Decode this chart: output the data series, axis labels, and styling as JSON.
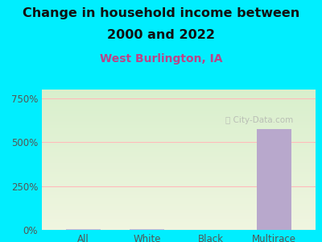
{
  "title_line1": "Change in household income between",
  "title_line2": "2000 and 2022",
  "subtitle": "West Burlington, IA",
  "categories": [
    "All",
    "White",
    "Black",
    "Multirace"
  ],
  "values": [
    3,
    6,
    2,
    575
  ],
  "bar_color_small": "#c8b8d8",
  "bar_color_large": "#b8a8cc",
  "title_fontsize": 11.5,
  "subtitle_fontsize": 10,
  "subtitle_color": "#bb4488",
  "title_color": "#111111",
  "background_color": "#00eeff",
  "plot_bg_top": "#d8efcc",
  "plot_bg_bottom": "#f0f5e0",
  "yticks": [
    0,
    250,
    500,
    750
  ],
  "ylim": [
    0,
    800
  ],
  "grid_color": "#ffbbbb",
  "watermark": "City-Data.com",
  "xlabel_color": "#555555",
  "tick_color": "#555555",
  "title_weight": "bold"
}
